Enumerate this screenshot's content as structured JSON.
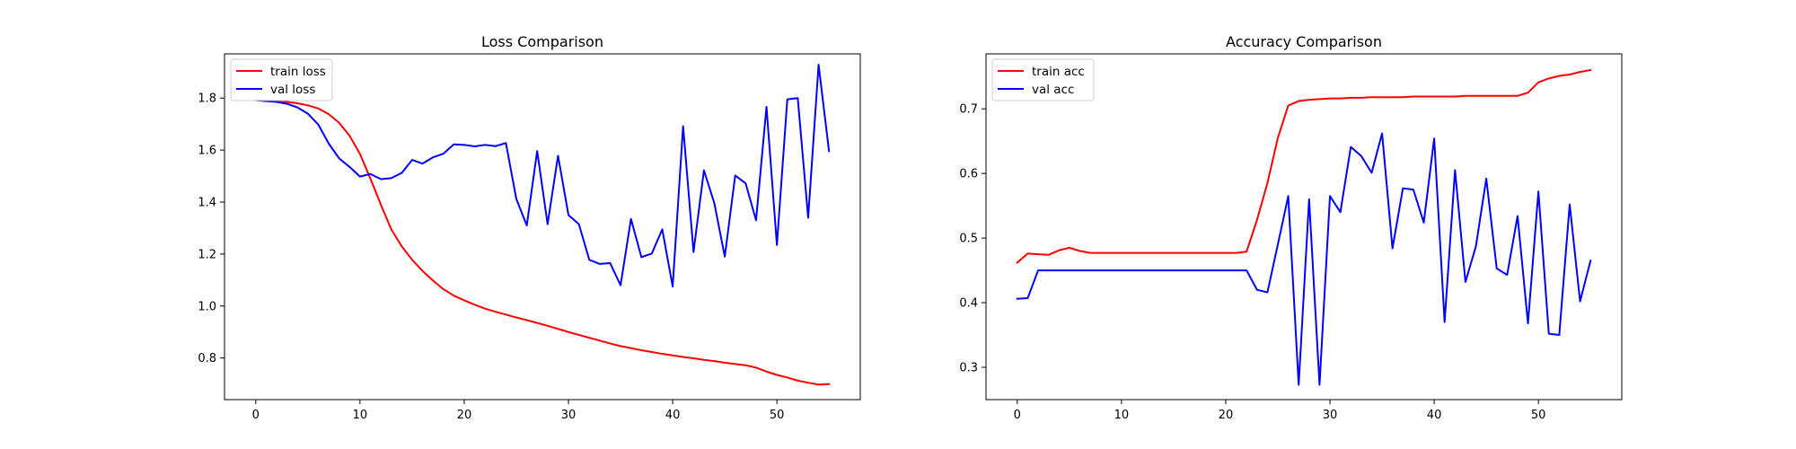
{
  "chart_data": [
    {
      "type": "line",
      "title": "Loss Comparison",
      "xlabel": "",
      "ylabel": "",
      "xlim": [
        -3,
        58
      ],
      "ylim": [
        0.64,
        1.97
      ],
      "xticks": [
        0,
        10,
        20,
        30,
        40,
        50
      ],
      "yticks": [
        0.8,
        1.0,
        1.2,
        1.4,
        1.6,
        1.8
      ],
      "grid": false,
      "legend_position": "upper-left",
      "series": [
        {
          "name": "train loss",
          "color": "#ff0000",
          "x": [
            0,
            1,
            2,
            3,
            4,
            5,
            6,
            7,
            8,
            9,
            10,
            11,
            12,
            13,
            14,
            15,
            16,
            17,
            18,
            19,
            20,
            21,
            22,
            23,
            24,
            25,
            26,
            27,
            28,
            29,
            30,
            31,
            32,
            33,
            34,
            35,
            36,
            37,
            38,
            39,
            40,
            41,
            42,
            43,
            44,
            45,
            46,
            47,
            48,
            49,
            50,
            51,
            52,
            53,
            54,
            55
          ],
          "values": [
            1.792,
            1.79,
            1.788,
            1.785,
            1.78,
            1.772,
            1.76,
            1.738,
            1.705,
            1.655,
            1.585,
            1.49,
            1.39,
            1.295,
            1.23,
            1.178,
            1.135,
            1.098,
            1.065,
            1.04,
            1.022,
            1.005,
            0.99,
            0.978,
            0.967,
            0.956,
            0.946,
            0.935,
            0.924,
            0.912,
            0.9,
            0.889,
            0.878,
            0.867,
            0.856,
            0.846,
            0.838,
            0.83,
            0.823,
            0.816,
            0.81,
            0.804,
            0.799,
            0.793,
            0.788,
            0.782,
            0.777,
            0.772,
            0.763,
            0.748,
            0.735,
            0.725,
            0.713,
            0.705,
            0.698,
            0.7
          ]
        },
        {
          "name": "val loss",
          "color": "#0000ff",
          "x": [
            0,
            1,
            2,
            3,
            4,
            5,
            6,
            7,
            8,
            9,
            10,
            11,
            12,
            13,
            14,
            15,
            16,
            17,
            18,
            19,
            20,
            21,
            22,
            23,
            24,
            25,
            26,
            27,
            28,
            29,
            30,
            31,
            32,
            33,
            34,
            35,
            36,
            37,
            38,
            39,
            40,
            41,
            42,
            43,
            44,
            45,
            46,
            47,
            48,
            49,
            50,
            51,
            52,
            53,
            54,
            55
          ],
          "values": [
            1.792,
            1.788,
            1.785,
            1.778,
            1.764,
            1.74,
            1.698,
            1.625,
            1.568,
            1.535,
            1.498,
            1.508,
            1.488,
            1.492,
            1.512,
            1.562,
            1.548,
            1.572,
            1.586,
            1.622,
            1.62,
            1.614,
            1.62,
            1.615,
            1.627,
            1.412,
            1.31,
            1.596,
            1.315,
            1.578,
            1.35,
            1.315,
            1.178,
            1.162,
            1.165,
            1.08,
            1.335,
            1.188,
            1.202,
            1.295,
            1.075,
            1.692,
            1.208,
            1.522,
            1.395,
            1.19,
            1.502,
            1.472,
            1.33,
            1.766,
            1.235,
            1.795,
            1.8,
            1.34,
            1.928,
            1.596
          ]
        }
      ]
    },
    {
      "type": "line",
      "title": "Accuracy Comparison",
      "xlabel": "",
      "ylabel": "",
      "xlim": [
        -3,
        58
      ],
      "ylim": [
        0.25,
        0.785
      ],
      "xticks": [
        0,
        10,
        20,
        30,
        40,
        50
      ],
      "yticks": [
        0.3,
        0.4,
        0.5,
        0.6,
        0.7
      ],
      "grid": false,
      "legend_position": "upper-left",
      "series": [
        {
          "name": "train acc",
          "color": "#ff0000",
          "x": [
            0,
            1,
            2,
            3,
            4,
            5,
            6,
            7,
            8,
            9,
            10,
            11,
            12,
            13,
            14,
            15,
            16,
            17,
            18,
            19,
            20,
            21,
            22,
            23,
            24,
            25,
            26,
            27,
            28,
            29,
            30,
            31,
            32,
            33,
            34,
            35,
            36,
            37,
            38,
            39,
            40,
            41,
            42,
            43,
            44,
            45,
            46,
            47,
            48,
            49,
            50,
            51,
            52,
            53,
            54,
            55
          ],
          "values": [
            0.462,
            0.476,
            0.475,
            0.474,
            0.481,
            0.485,
            0.48,
            0.477,
            0.477,
            0.477,
            0.477,
            0.477,
            0.477,
            0.477,
            0.477,
            0.477,
            0.477,
            0.477,
            0.477,
            0.477,
            0.477,
            0.477,
            0.479,
            0.528,
            0.585,
            0.655,
            0.705,
            0.712,
            0.714,
            0.715,
            0.716,
            0.716,
            0.717,
            0.717,
            0.718,
            0.718,
            0.718,
            0.718,
            0.719,
            0.719,
            0.719,
            0.719,
            0.719,
            0.72,
            0.72,
            0.72,
            0.72,
            0.72,
            0.72,
            0.725,
            0.741,
            0.747,
            0.751,
            0.753,
            0.757,
            0.76
          ]
        },
        {
          "name": "val acc",
          "color": "#0000ff",
          "x": [
            0,
            1,
            2,
            3,
            4,
            5,
            6,
            7,
            8,
            9,
            10,
            11,
            12,
            13,
            14,
            15,
            16,
            17,
            18,
            19,
            20,
            21,
            22,
            23,
            24,
            25,
            26,
            27,
            28,
            29,
            30,
            31,
            32,
            33,
            34,
            35,
            36,
            37,
            38,
            39,
            40,
            41,
            42,
            43,
            44,
            45,
            46,
            47,
            48,
            49,
            50,
            51,
            52,
            53,
            54,
            55
          ],
          "values": [
            0.406,
            0.407,
            0.45,
            0.45,
            0.45,
            0.45,
            0.45,
            0.45,
            0.45,
            0.45,
            0.45,
            0.45,
            0.45,
            0.45,
            0.45,
            0.45,
            0.45,
            0.45,
            0.45,
            0.45,
            0.45,
            0.45,
            0.45,
            0.42,
            0.416,
            0.49,
            0.565,
            0.273,
            0.56,
            0.273,
            0.565,
            0.54,
            0.641,
            0.627,
            0.601,
            0.662,
            0.484,
            0.577,
            0.575,
            0.524,
            0.654,
            0.37,
            0.605,
            0.432,
            0.487,
            0.592,
            0.453,
            0.443,
            0.534,
            0.368,
            0.572,
            0.352,
            0.35,
            0.552,
            0.402,
            0.465
          ]
        }
      ]
    }
  ]
}
